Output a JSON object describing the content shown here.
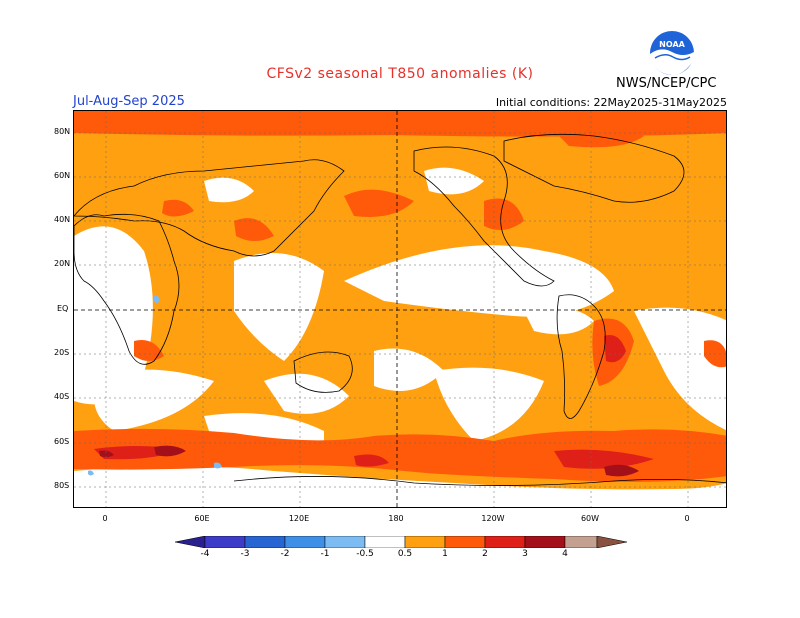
{
  "header": {
    "title": "CFSv2 seasonal T850 anomalies (K)",
    "season": "Jul-Aug-Sep 2025",
    "initial_conditions": "Initial conditions: 22May2025-31May2025",
    "agency": "NWS/NCEP/CPC",
    "logo_icon": "noaa-logo-icon"
  },
  "map": {
    "lat_labels": [
      "80N",
      "60N",
      "40N",
      "20N",
      "EQ",
      "20S",
      "40S",
      "60S",
      "80S"
    ],
    "lon_labels": [
      "0",
      "60E",
      "120E",
      "180",
      "120W",
      "60W",
      "0"
    ]
  },
  "legend": {
    "labels": [
      "-4",
      "-3",
      "-2",
      "-1",
      "-0.5",
      "0.5",
      "1",
      "2",
      "3",
      "4"
    ],
    "colors": {
      "lt_-4": "#2a1f8f",
      "-4_-3": "#3c3cc8",
      "-3_-2": "#2766d2",
      "-2_-1": "#3f8fe6",
      "-1_-0.5": "#7cbcf2",
      "-0.5_0.5": "#ffffff",
      "0.5_1": "#ffa010",
      "1_2": "#ff5a0a",
      "2_3": "#de2018",
      "3_4": "#a4101a",
      "4_5": "#c4a090",
      "gt_5": "#8a5040"
    }
  }
}
